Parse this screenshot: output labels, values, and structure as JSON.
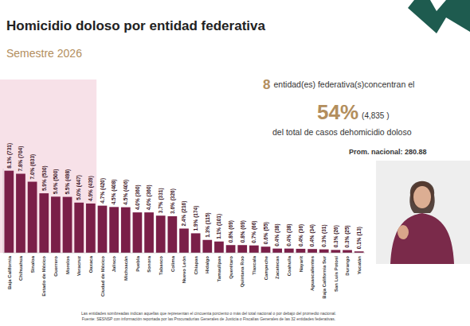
{
  "chart_data": {
    "type": "bar",
    "title": "Homicidio doloso por entidad federativa",
    "subtitle": "Semestre 2026",
    "categories": [
      "Baja California",
      "Chihuahua",
      "Sinaloa",
      "Estado de México",
      "Guerrero",
      "Morelos",
      "Veracruz",
      "Oaxaca",
      "Ciudad de México",
      "Jalisco",
      "Michoacán",
      "Puebla",
      "Sonora",
      "Tabasco",
      "Colima",
      "Nuevo León",
      "Chiapas",
      "Hidalgo",
      "Tamaulipas",
      "Querétaro",
      "Quintana Roo",
      "Tlaxcala",
      "Campeche",
      "Zacatecas",
      "Coahuila",
      "Nayarit",
      "Aguascalientes",
      "Baja California Sur",
      "San Luis Potosí",
      "Durango",
      "Yucatán"
    ],
    "values": [
      731,
      704,
      633,
      530,
      500,
      498,
      447,
      439,
      420,
      408,
      406,
      360,
      360,
      331,
      326,
      216,
      174,
      115,
      101,
      69,
      69,
      66,
      55,
      38,
      38,
      36,
      34,
      31,
      26,
      25,
      13
    ],
    "value_labels": [
      "8.1% (731)",
      "7.8% (704)",
      "7.0% (633)",
      "5.9% (530)",
      "5.6% (500)",
      "5.5% (498)",
      "5.0% (447)",
      "4.9% (439)",
      "4.7% (420)",
      "4.5% (408)",
      "4.5% (406)",
      "4.0% (360)",
      "4.0% (360)",
      "3.7% (331)",
      "3.6% (326)",
      "2.4% (216)",
      "1.9% (174)",
      "1.3% (115)",
      "1.1% (101)",
      "0.8% (69)",
      "0.8% (69)",
      "0.7% (66)",
      "0.6% (55)",
      "0.4% (38)",
      "0.4% (38)",
      "0.4% (36)",
      "0.4% (34)",
      "0.3% (31)",
      "0.3% (26)",
      "0.3% (25)",
      "0.1% (13)"
    ],
    "color": "#7a1f48",
    "ylim": [
      0,
      750
    ],
    "tick_labels": "x",
    "data_labels": true,
    "annotations": [
      "8",
      "entidad(es) federativa(s)concentran el",
      "54%",
      "(4,835 )",
      "del total de casos dehomicidio doloso",
      "Prom. nacional: 280.88"
    ],
    "footnotes": [
      "Las entidades sombreadas indican aquellas que representan el cincuenta porciento o más del total nacional o por debajo del promedio nacional.",
      "Fuente: SESNSP con información reportada por las Procuradurías Generales de Justicia o Fiscalías Generales de las 32 entidades federativas."
    ]
  }
}
